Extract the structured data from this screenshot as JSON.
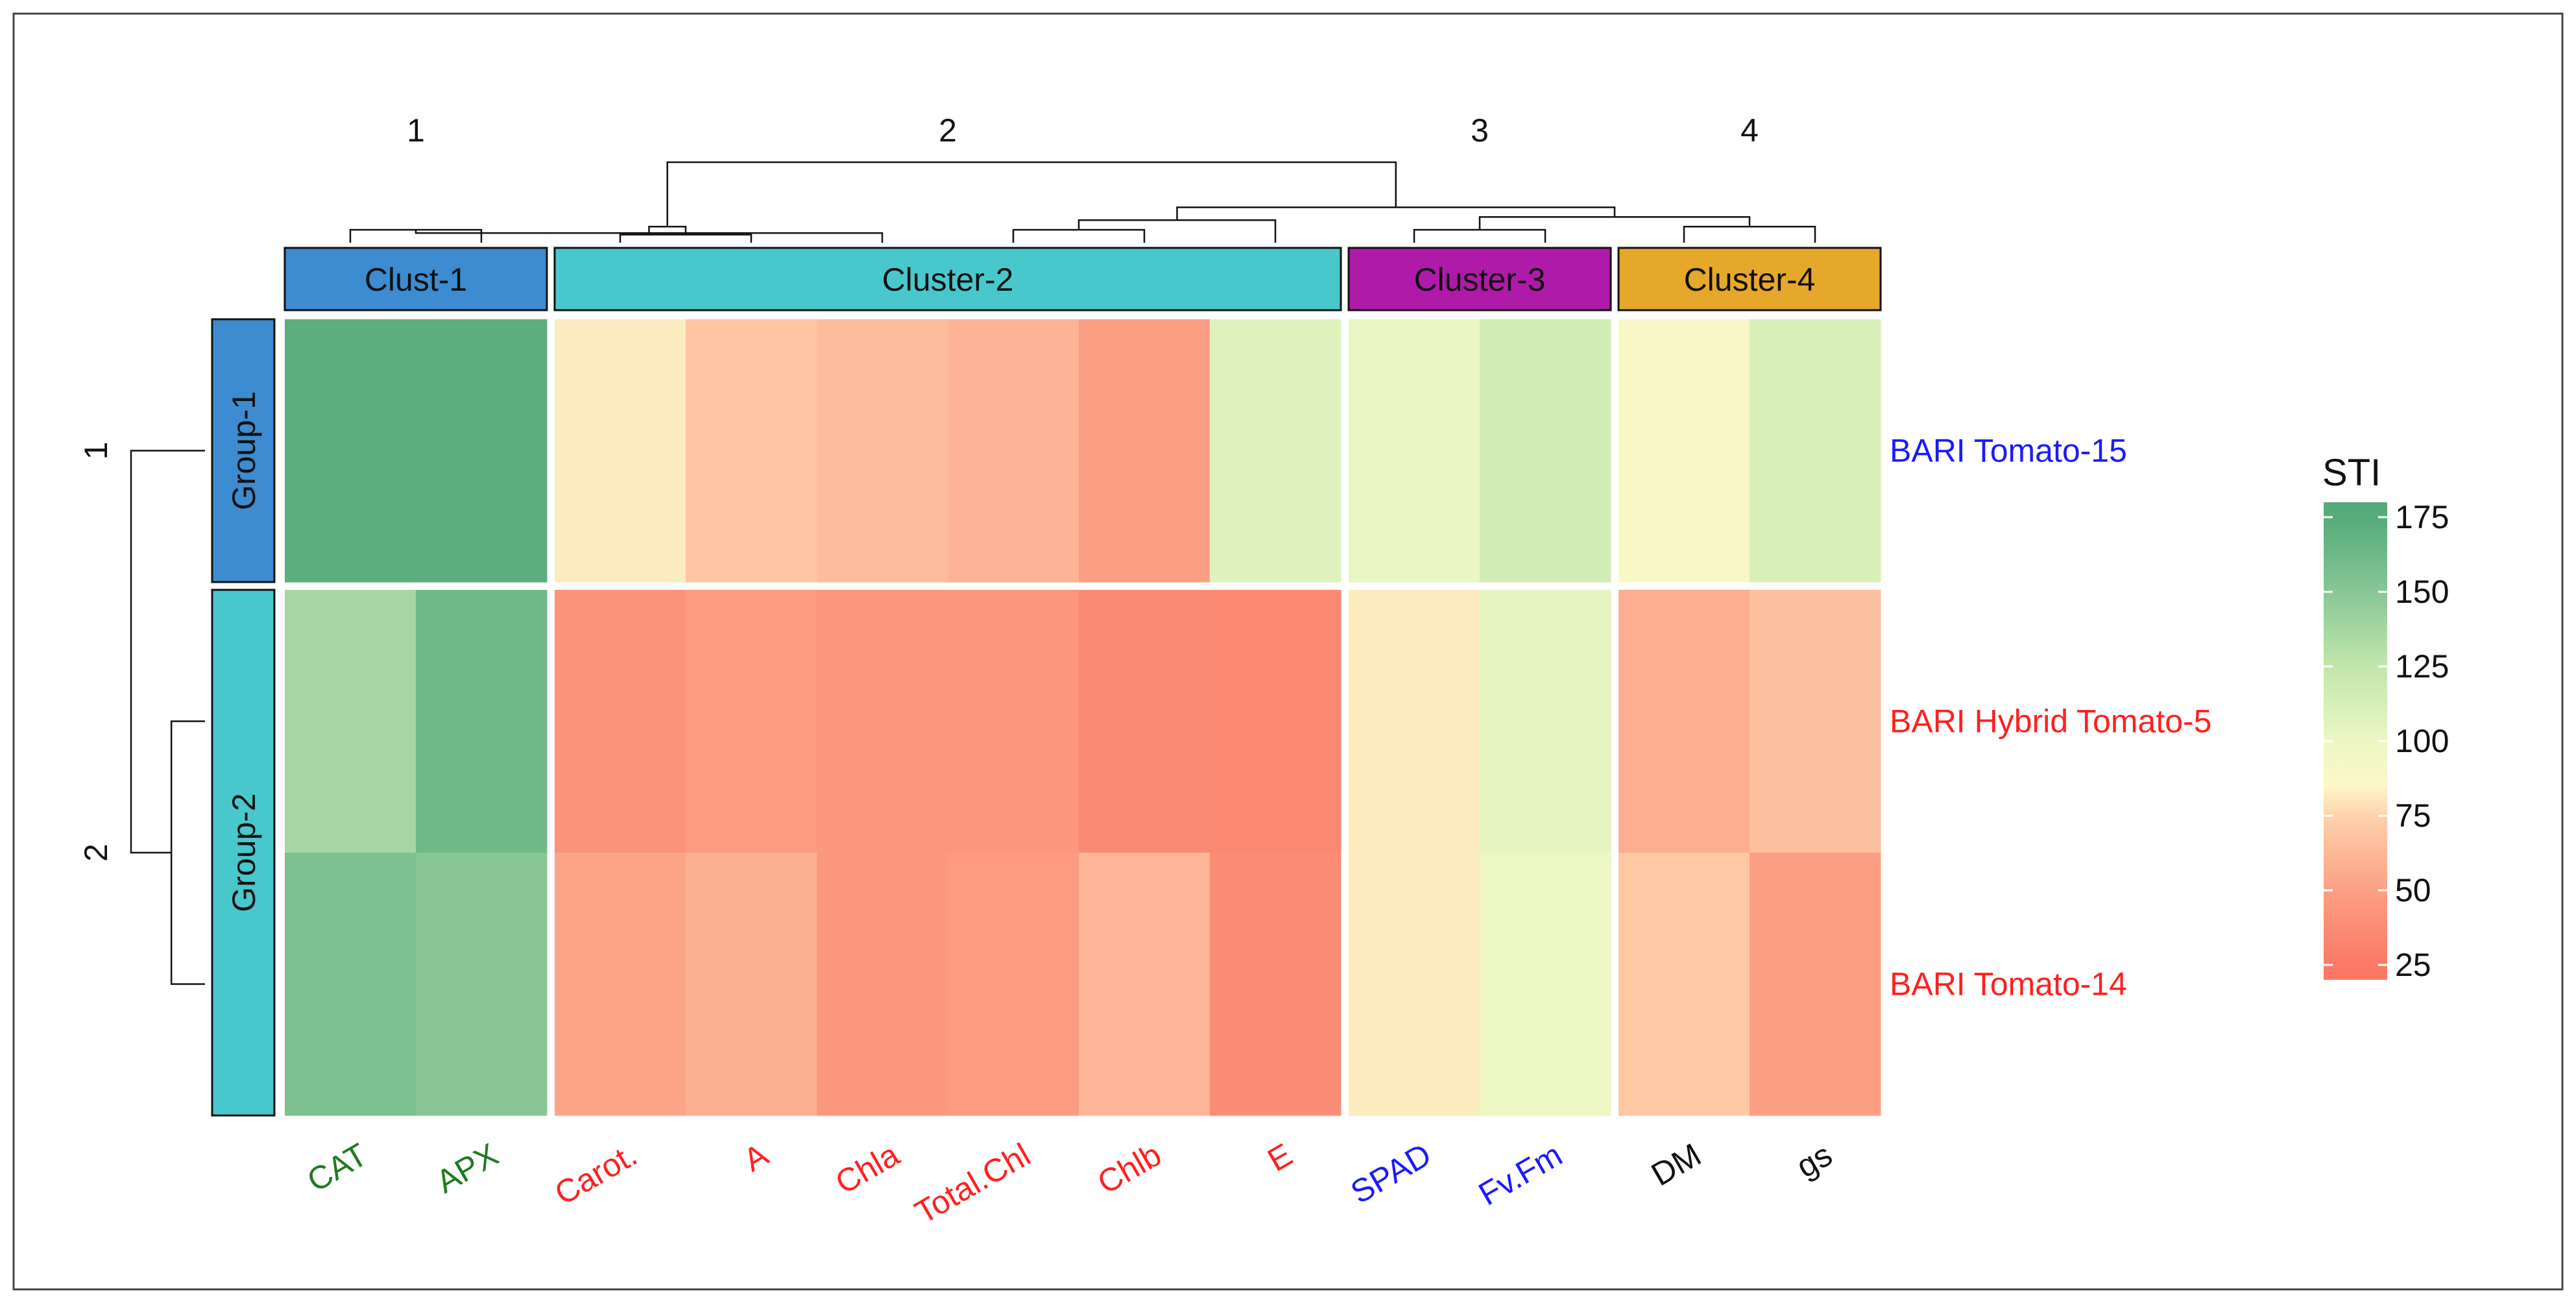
{
  "chart_data": {
    "type": "heatmap",
    "legend": {
      "title": "STI",
      "range": [
        20,
        180
      ],
      "ticks": [
        175,
        150,
        125,
        100,
        75,
        50,
        25
      ],
      "colors": [
        {
          "value": 25,
          "color": "#fa7a66"
        },
        {
          "value": 50,
          "color": "#fc9f85"
        },
        {
          "value": 75,
          "color": "#fed2ad"
        },
        {
          "value": 85,
          "color": "#fdf7c8"
        },
        {
          "value": 100,
          "color": "#ecf7c4"
        },
        {
          "value": 125,
          "color": "#c2e6ad"
        },
        {
          "value": 150,
          "color": "#88c696"
        },
        {
          "value": 175,
          "color": "#56ab7b"
        }
      ]
    },
    "column_clusters": [
      {
        "number": "1",
        "label": "Clust-1",
        "color": "#3d8bd0",
        "columns": [
          "CAT",
          "APX"
        ]
      },
      {
        "number": "2",
        "label": "Cluster-2",
        "color": "#48c8cc",
        "columns": [
          "Carot.",
          "A",
          "Chla",
          "Total.Chl",
          "Chlb",
          "E"
        ]
      },
      {
        "number": "3",
        "label": "Cluster-3",
        "color": "#b01aa9",
        "columns": [
          "SPAD",
          "Fv.Fm"
        ]
      },
      {
        "number": "4",
        "label": "Cluster-4",
        "color": "#e6a82a",
        "columns": [
          "DM",
          "gs"
        ]
      }
    ],
    "row_groups": [
      {
        "number": "1",
        "label": "Group-1",
        "color": "#3d8bd0",
        "rows": [
          "BARI Tomato-15"
        ]
      },
      {
        "number": "2",
        "label": "Group-2",
        "color": "#48c8cc",
        "rows": [
          "BARI Hybrid Tomato-5",
          "BARI Tomato-14"
        ]
      }
    ],
    "columns": [
      {
        "name": "CAT",
        "color": "#1f7a1f"
      },
      {
        "name": "APX",
        "color": "#1f7a1f"
      },
      {
        "name": "Carot.",
        "color": "#ff2020"
      },
      {
        "name": "A",
        "color": "#ff2020"
      },
      {
        "name": "Chla",
        "color": "#ff2020"
      },
      {
        "name": "Total.Chl",
        "color": "#ff2020"
      },
      {
        "name": "Chlb",
        "color": "#ff2020"
      },
      {
        "name": "E",
        "color": "#ff2020"
      },
      {
        "name": "SPAD",
        "color": "#1a1aff"
      },
      {
        "name": "Fv.Fm",
        "color": "#1a1aff"
      },
      {
        "name": "DM",
        "color": "#111111"
      },
      {
        "name": "gs",
        "color": "#111111"
      }
    ],
    "rows": [
      {
        "name": "BARI Tomato-15",
        "color": "#1a1aff"
      },
      {
        "name": "BARI Hybrid Tomato-5",
        "color": "#ff2020"
      },
      {
        "name": "BARI Tomato-14",
        "color": "#ff2020"
      }
    ],
    "values": [
      [
        172,
        172,
        82,
        69,
        64,
        60,
        49,
        108,
        101,
        115,
        88,
        112
      ],
      [
        137,
        162,
        42,
        47,
        45,
        44,
        36,
        35,
        82,
        104,
        57,
        66
      ],
      [
        155,
        150,
        52,
        58,
        45,
        47,
        61,
        38,
        82,
        100,
        70,
        50
      ]
    ],
    "column_dendrogram": [
      {
        "l": 0,
        "r": 1,
        "h": 8
      },
      {
        "l": 2,
        "r": 3,
        "h": 5
      },
      {
        "l": 12,
        "r": 4,
        "h": 6
      },
      {
        "l": 5,
        "r": 6,
        "h": 8
      },
      {
        "l": 13,
        "r": 14,
        "h": 10
      },
      {
        "l": 15,
        "r": 7,
        "h": 14
      },
      {
        "l": 8,
        "r": 9,
        "h": 8
      },
      {
        "l": 10,
        "r": 11,
        "h": 10
      },
      {
        "l": 18,
        "r": 19,
        "h": 16
      },
      {
        "l": 17,
        "r": 20,
        "h": 22
      },
      {
        "l": 16,
        "r": 21,
        "h": 50
      }
    ],
    "row_dendrogram": [
      {
        "l": 1,
        "r": 2,
        "h": 1
      },
      {
        "l": 0,
        "r": 3,
        "h": 2.2
      }
    ]
  }
}
